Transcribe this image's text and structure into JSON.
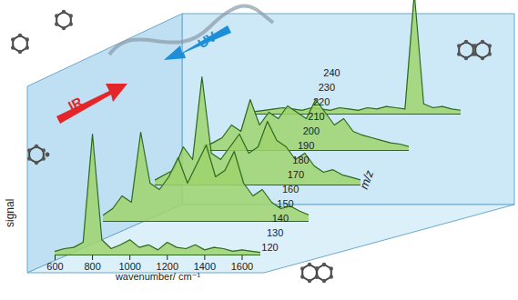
{
  "chart_data": {
    "type": "line",
    "xlabel": "wavenumber/ cm⁻¹",
    "ylabel": "signal",
    "zlabel": "m/z",
    "annotations": [
      "IR",
      "UV"
    ],
    "x": [
      600,
      650,
      700,
      750,
      800,
      850,
      900,
      950,
      1000,
      1050,
      1100,
      1150,
      1200,
      1250,
      1300,
      1350,
      1400,
      1450,
      1500,
      1550,
      1600,
      1650,
      1700
    ],
    "xlim": [
      600,
      1700
    ],
    "xticks": [
      600,
      800,
      1000,
      1200,
      1400,
      1600
    ],
    "ylim": [
      0,
      1
    ],
    "yticks": [],
    "zlim": [
      120,
      240
    ],
    "zticks": [
      120,
      130,
      140,
      150,
      160,
      170,
      180,
      190,
      200,
      210,
      220,
      230,
      240
    ],
    "series": [
      {
        "mz": 228,
        "color": "#2d6a1f",
        "values": [
          0.02,
          0.03,
          0.04,
          0.05,
          0.04,
          0.03,
          0.05,
          0.04,
          0.03,
          0.05,
          0.04,
          0.03,
          0.05,
          0.04,
          0.06,
          0.05,
          0.04,
          0.95,
          0.08,
          0.05,
          0.06,
          0.04,
          0.03
        ]
      },
      {
        "mz": 202,
        "color": "#2d6a1f",
        "values": [
          0.03,
          0.06,
          0.1,
          0.2,
          0.15,
          0.4,
          0.2,
          0.3,
          0.25,
          0.35,
          0.3,
          0.25,
          0.4,
          0.3,
          0.2,
          0.25,
          0.15,
          0.12,
          0.1,
          0.08,
          0.06,
          0.05,
          0.03
        ]
      },
      {
        "mz": 178,
        "color": "#2d6a1f",
        "values": [
          0.04,
          0.08,
          0.12,
          0.3,
          0.2,
          0.85,
          0.25,
          0.2,
          0.3,
          0.4,
          0.25,
          0.3,
          0.5,
          0.35,
          0.3,
          0.2,
          0.25,
          0.15,
          0.1,
          0.12,
          0.08,
          0.06,
          0.04
        ]
      },
      {
        "mz": 152,
        "color": "#2d6a1f",
        "values": [
          0.05,
          0.1,
          0.2,
          0.15,
          0.7,
          0.3,
          0.25,
          0.35,
          0.5,
          0.3,
          0.45,
          0.6,
          0.35,
          0.4,
          0.55,
          0.3,
          0.2,
          0.25,
          0.15,
          0.1,
          0.12,
          0.08,
          0.05
        ]
      },
      {
        "mz": 128,
        "color": "#2d6a1f",
        "values": [
          0.03,
          0.05,
          0.06,
          0.1,
          0.95,
          0.12,
          0.05,
          0.08,
          0.12,
          0.06,
          0.08,
          0.04,
          0.1,
          0.06,
          0.05,
          0.08,
          0.04,
          0.06,
          0.05,
          0.03,
          0.04,
          0.03,
          0.02
        ]
      }
    ]
  }
}
